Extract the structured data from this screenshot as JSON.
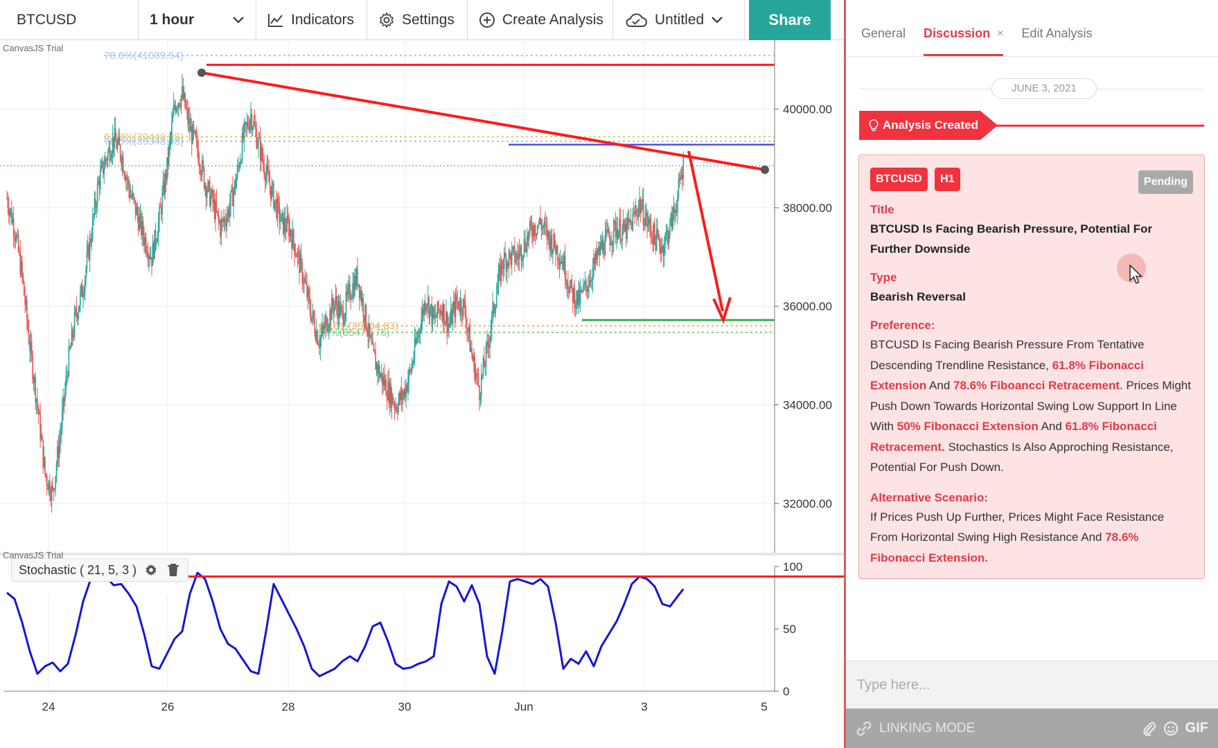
{
  "toolbar": {
    "symbol": "BTCUSD",
    "interval": "1 hour",
    "indicators_label": "Indicators",
    "settings_label": "Settings",
    "create_label": "Create Analysis",
    "untitled_label": "Untitled",
    "share_label": "Share"
  },
  "chart": {
    "watermark": "CanvasJS Trial",
    "indicator_label": "Stochastic ( 21, 5, 3 )",
    "colors": {
      "up": "#26a69a",
      "down": "#ef5350",
      "annotation": "#ff1a1a",
      "stoch": "#1515d8",
      "support": "#2db34a",
      "resistance_blue": "#5050e0"
    }
  },
  "chart_data": {
    "type": "candlestick",
    "x_ticks": [
      "24",
      "26",
      "28",
      "30",
      "Jun",
      "3",
      "5"
    ],
    "y_ticks": [
      "40000.00",
      "38000.00",
      "36000.00",
      "34000.00",
      "32000.00"
    ],
    "ylim": [
      31000,
      41400
    ],
    "fib_labels": [
      "78.6%(41089.54)",
      "61.8%(39440.28)",
      "78.6%(39348.48)",
      "61.8%(35604.83)",
      "50%(35471.76)"
    ],
    "close_path": [
      [
        0,
        38200
      ],
      [
        8,
        37600
      ],
      [
        16,
        36600
      ],
      [
        24,
        35200
      ],
      [
        32,
        34000
      ],
      [
        40,
        32600
      ],
      [
        48,
        32200
      ],
      [
        56,
        33400
      ],
      [
        64,
        34800
      ],
      [
        72,
        35800
      ],
      [
        80,
        36400
      ],
      [
        88,
        37400
      ],
      [
        96,
        38500
      ],
      [
        104,
        39000
      ],
      [
        112,
        39400
      ],
      [
        120,
        39100
      ],
      [
        128,
        38400
      ],
      [
        136,
        37900
      ],
      [
        144,
        37400
      ],
      [
        152,
        37000
      ],
      [
        160,
        37800
      ],
      [
        168,
        38800
      ],
      [
        176,
        40100
      ],
      [
        184,
        40300
      ],
      [
        192,
        39600
      ],
      [
        200,
        39200
      ],
      [
        208,
        38500
      ],
      [
        216,
        38100
      ],
      [
        224,
        37600
      ],
      [
        232,
        37900
      ],
      [
        240,
        38500
      ],
      [
        248,
        39400
      ],
      [
        256,
        39900
      ],
      [
        264,
        39300
      ],
      [
        272,
        38700
      ],
      [
        280,
        38200
      ],
      [
        288,
        37700
      ],
      [
        296,
        37600
      ],
      [
        304,
        37100
      ],
      [
        312,
        36500
      ],
      [
        320,
        35800
      ],
      [
        328,
        35300
      ],
      [
        336,
        35700
      ],
      [
        344,
        36100
      ],
      [
        352,
        35800
      ],
      [
        360,
        36300
      ],
      [
        368,
        36600
      ],
      [
        376,
        35800
      ],
      [
        384,
        35000
      ],
      [
        392,
        34600
      ],
      [
        400,
        34300
      ],
      [
        408,
        34000
      ],
      [
        416,
        34200
      ],
      [
        424,
        34700
      ],
      [
        432,
        35500
      ],
      [
        440,
        36200
      ],
      [
        448,
        35700
      ],
      [
        456,
        36000
      ],
      [
        464,
        35600
      ],
      [
        472,
        36100
      ],
      [
        480,
        36000
      ],
      [
        488,
        35000
      ],
      [
        496,
        34300
      ],
      [
        504,
        35100
      ],
      [
        512,
        36100
      ],
      [
        520,
        36900
      ],
      [
        528,
        37000
      ],
      [
        536,
        37000
      ],
      [
        544,
        37300
      ],
      [
        552,
        37600
      ],
      [
        560,
        37700
      ],
      [
        568,
        37400
      ],
      [
        576,
        37200
      ],
      [
        584,
        36900
      ],
      [
        592,
        36300
      ],
      [
        600,
        36100
      ],
      [
        608,
        36400
      ],
      [
        616,
        36800
      ],
      [
        624,
        37200
      ],
      [
        632,
        37400
      ],
      [
        640,
        37600
      ],
      [
        648,
        37500
      ],
      [
        656,
        37700
      ],
      [
        664,
        38100
      ],
      [
        672,
        37700
      ],
      [
        680,
        37400
      ],
      [
        688,
        37200
      ],
      [
        696,
        37600
      ],
      [
        704,
        38200
      ],
      [
        710,
        38900
      ]
    ],
    "stoch_path": [
      [
        0,
        79
      ],
      [
        8,
        74
      ],
      [
        16,
        55
      ],
      [
        24,
        32
      ],
      [
        32,
        14
      ],
      [
        40,
        20
      ],
      [
        48,
        23
      ],
      [
        56,
        16
      ],
      [
        64,
        22
      ],
      [
        72,
        45
      ],
      [
        80,
        72
      ],
      [
        88,
        90
      ],
      [
        96,
        97
      ],
      [
        104,
        92
      ],
      [
        112,
        85
      ],
      [
        120,
        86
      ],
      [
        128,
        78
      ],
      [
        136,
        68
      ],
      [
        144,
        46
      ],
      [
        152,
        20
      ],
      [
        160,
        18
      ],
      [
        168,
        30
      ],
      [
        176,
        42
      ],
      [
        184,
        48
      ],
      [
        192,
        78
      ],
      [
        200,
        95
      ],
      [
        208,
        90
      ],
      [
        216,
        72
      ],
      [
        224,
        50
      ],
      [
        232,
        38
      ],
      [
        240,
        34
      ],
      [
        248,
        25
      ],
      [
        256,
        16
      ],
      [
        264,
        14
      ],
      [
        272,
        48
      ],
      [
        280,
        86
      ],
      [
        288,
        74
      ],
      [
        296,
        62
      ],
      [
        304,
        50
      ],
      [
        312,
        36
      ],
      [
        320,
        18
      ],
      [
        328,
        12
      ],
      [
        336,
        15
      ],
      [
        344,
        18
      ],
      [
        352,
        24
      ],
      [
        360,
        28
      ],
      [
        368,
        24
      ],
      [
        376,
        36
      ],
      [
        384,
        52
      ],
      [
        392,
        55
      ],
      [
        400,
        40
      ],
      [
        408,
        22
      ],
      [
        416,
        18
      ],
      [
        424,
        19
      ],
      [
        432,
        22
      ],
      [
        440,
        24
      ],
      [
        448,
        28
      ],
      [
        456,
        70
      ],
      [
        464,
        88
      ],
      [
        472,
        84
      ],
      [
        480,
        72
      ],
      [
        488,
        85
      ],
      [
        496,
        70
      ],
      [
        504,
        28
      ],
      [
        512,
        14
      ],
      [
        520,
        48
      ],
      [
        528,
        88
      ],
      [
        536,
        90
      ],
      [
        544,
        88
      ],
      [
        552,
        86
      ],
      [
        560,
        90
      ],
      [
        568,
        84
      ],
      [
        576,
        55
      ],
      [
        584,
        18
      ],
      [
        592,
        26
      ],
      [
        600,
        22
      ],
      [
        608,
        32
      ],
      [
        616,
        20
      ],
      [
        624,
        36
      ],
      [
        632,
        46
      ],
      [
        640,
        56
      ],
      [
        648,
        70
      ],
      [
        656,
        86
      ],
      [
        664,
        92
      ],
      [
        672,
        90
      ],
      [
        680,
        84
      ],
      [
        688,
        70
      ],
      [
        696,
        68
      ],
      [
        704,
        76
      ],
      [
        710,
        82
      ]
    ],
    "stoch_yticks": [
      "100",
      "50",
      "0"
    ]
  },
  "panel": {
    "tabs": [
      "General",
      "Discussion",
      "Edit Analysis"
    ],
    "tab_close": "×",
    "date": "JUNE 3, 2021",
    "created_label": "Analysis Created",
    "tags": [
      "BTCUSD",
      "H1"
    ],
    "status": "Pending",
    "title_label": "Title",
    "title": "BTCUSD Is Facing Bearish Pressure, Potential For Further Downside",
    "type_label": "Type",
    "type": "Bearish Reversal",
    "preference_label": "Preference:",
    "preference": [
      {
        "t": "BTCUSD Is Facing Bearish Pressure From Tentative Descending Trendline Resistance, "
      },
      {
        "t": "61.8% Fibonacci Extension",
        "hl": true
      },
      {
        "t": " And "
      },
      {
        "t": "78.6% Fiboancci Retracement",
        "hl": true
      },
      {
        "t": ". Prices Might Push Down Towards Horizontal Swing Low Support In Line With "
      },
      {
        "t": "50% Fibonacci Extension",
        "hl": true
      },
      {
        "t": " And "
      },
      {
        "t": "61.8% Fibonacci Retracement.",
        "hl": true
      },
      {
        "t": " Stochastics Is Also Approching Resistance, Potential For Push Down."
      }
    ],
    "alt_label": "Alternative Scenario:",
    "alternative": [
      {
        "t": "If Prices Push Up Further, Prices Might Face Resistance From Horizontal Swing High Resistance And "
      },
      {
        "t": "78.6% Fibonacci Extension.",
        "hl": true
      }
    ],
    "input_placeholder": "Type here...",
    "linking_label": "LINKING MODE",
    "gif_label": "GIF"
  }
}
